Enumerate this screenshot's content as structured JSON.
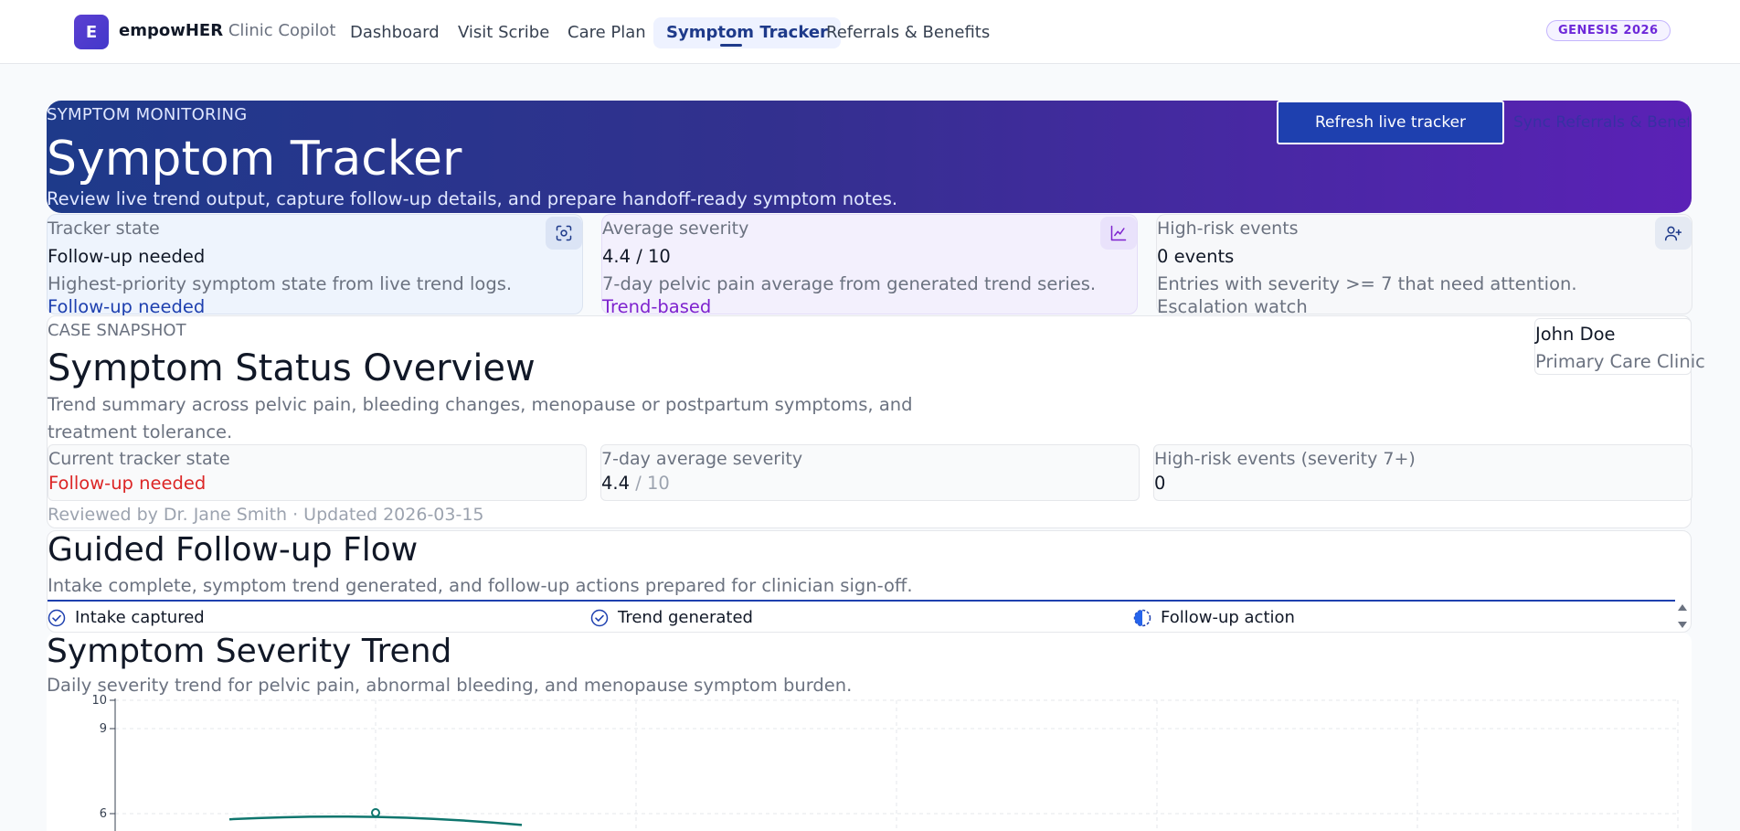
{
  "app": {
    "logo_letter": "E",
    "brand_name": "empowHER",
    "brand_sub": "Clinic Copilot",
    "badge": "GENESIS 2026"
  },
  "nav": {
    "tabs": [
      {
        "label": "Dashboard",
        "active": false
      },
      {
        "label": "Visit Scribe",
        "active": false
      },
      {
        "label": "Care Plan",
        "active": false
      },
      {
        "label": "Symptom Tracker",
        "active": true
      },
      {
        "label": "Referrals & Benefits",
        "active": false
      }
    ]
  },
  "hero": {
    "kicker": "SYMPTOM MONITORING",
    "title": "Symptom Tracker",
    "description": "Review live trend output, capture follow-up details, and prepare handoff-ready symptom notes.",
    "refresh_button": "Refresh live tracker",
    "sync_button": "Sync Referrals & Benefits"
  },
  "metrics": [
    {
      "label": "Tracker state",
      "value": "Follow-up needed",
      "description": "Highest-priority symptom state from live trend logs.",
      "tag": "Follow-up needed",
      "tag_color": "#1e40af",
      "icon": "scan-icon"
    },
    {
      "label": "Average severity",
      "value": "4.4 / 10",
      "description": "7-day pelvic pain average from generated trend series.",
      "tag": "Trend-based",
      "tag_color": "#7e22ce",
      "icon": "line-chart-icon"
    },
    {
      "label": "High-risk events",
      "value": "0 events",
      "description": "Entries with severity >= 7 that need attention.",
      "tag": "Escalation watch",
      "tag_color": "#6b7280",
      "icon": "user-plus-icon"
    }
  ],
  "snapshot": {
    "kicker": "CASE SNAPSHOT",
    "title": "Symptom Status Overview",
    "description": "Trend summary across pelvic pain, bleeding changes, menopause or postpartum symptoms, and treatment tolerance.",
    "patient_name": "John Doe",
    "clinic": "Primary Care Clinic",
    "stats": [
      {
        "label": "Current tracker state",
        "value": "Follow-up needed",
        "color": "#dc2626"
      },
      {
        "label": "7-day average severity",
        "value": "4.4",
        "suffix": " / 10"
      },
      {
        "label": "High-risk events (severity 7+)",
        "value": "0"
      }
    ],
    "footer": "Reviewed by Dr. Jane Smith · Updated 2026-03-15"
  },
  "flow": {
    "title": "Guided Follow-up Flow",
    "description": "Intake complete, symptom trend generated, and follow-up actions prepared for clinician sign-off.",
    "steps": [
      {
        "label": "Intake captured",
        "status": "complete",
        "icon": "check-circle-icon"
      },
      {
        "label": "Trend generated",
        "status": "complete",
        "icon": "check-circle-icon"
      },
      {
        "label": "Follow-up action",
        "status": "in-progress",
        "icon": "half-circle-icon"
      }
    ]
  },
  "trend": {
    "title": "Symptom Severity Trend",
    "description": "Daily severity trend for pelvic pain, abnormal bleeding, and menopause symptom burden."
  },
  "chart_data": {
    "type": "line",
    "yticks": [
      "10",
      "9",
      "6"
    ],
    "series": [
      {
        "values": [
          5.8,
          6.0,
          5.6
        ],
        "color": "#0f766e"
      }
    ]
  }
}
